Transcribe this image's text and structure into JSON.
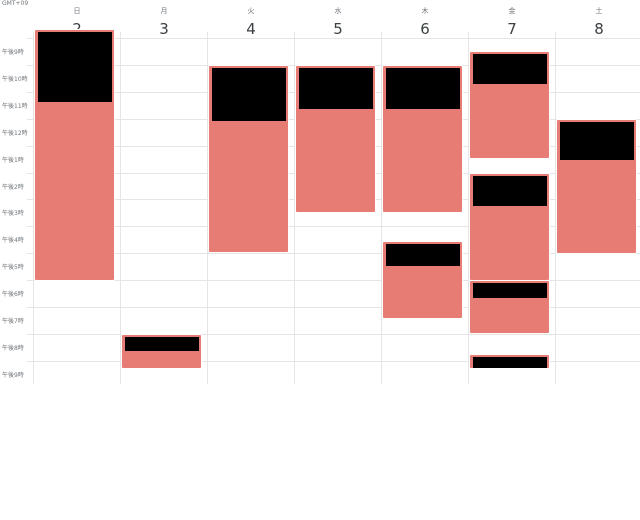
{
  "timezone_label": "GMT+09",
  "colors": {
    "event": "#e67c73",
    "redaction": "#000000",
    "grid": "#e5e5e5"
  },
  "days": [
    {
      "weekday": "日",
      "date": "2"
    },
    {
      "weekday": "月",
      "date": "3"
    },
    {
      "weekday": "火",
      "date": "4"
    },
    {
      "weekday": "水",
      "date": "5"
    },
    {
      "weekday": "木",
      "date": "6"
    },
    {
      "weekday": "金",
      "date": "7"
    },
    {
      "weekday": "土",
      "date": "8"
    }
  ],
  "hours": [
    "午後9時",
    "午後10時",
    "午後11時",
    "午後12時",
    "午後1時",
    "午後2時",
    "午後3時",
    "午後4時",
    "午後5時",
    "午後6時",
    "午後7時",
    "午後8時",
    "午後9時"
  ],
  "events": [
    {
      "day": 0,
      "start": 8.65,
      "end": 18.0,
      "title_redacted": true
    },
    {
      "day": 1,
      "start": 20.0,
      "end": 21.3,
      "title_redacted": true
    },
    {
      "day": 2,
      "start": 10.0,
      "end": 17.0,
      "title_redacted": true
    },
    {
      "day": 3,
      "start": 10.0,
      "end": 15.5,
      "title_redacted": true
    },
    {
      "day": 4,
      "start": 10.0,
      "end": 15.5,
      "title_redacted": true
    },
    {
      "day": 4,
      "start": 16.55,
      "end": 19.45,
      "title_redacted": true
    },
    {
      "day": 5,
      "start": 9.5,
      "end": 13.5,
      "title_redacted": true
    },
    {
      "day": 5,
      "start": 14.0,
      "end": 18.0,
      "title_redacted": true
    },
    {
      "day": 5,
      "start": 18.0,
      "end": 20.0,
      "title_redacted": true
    },
    {
      "day": 5,
      "start": 20.75,
      "end": 21.3,
      "title_redacted": true
    },
    {
      "day": 6,
      "start": 12.0,
      "end": 17.0,
      "title_redacted": true
    }
  ]
}
